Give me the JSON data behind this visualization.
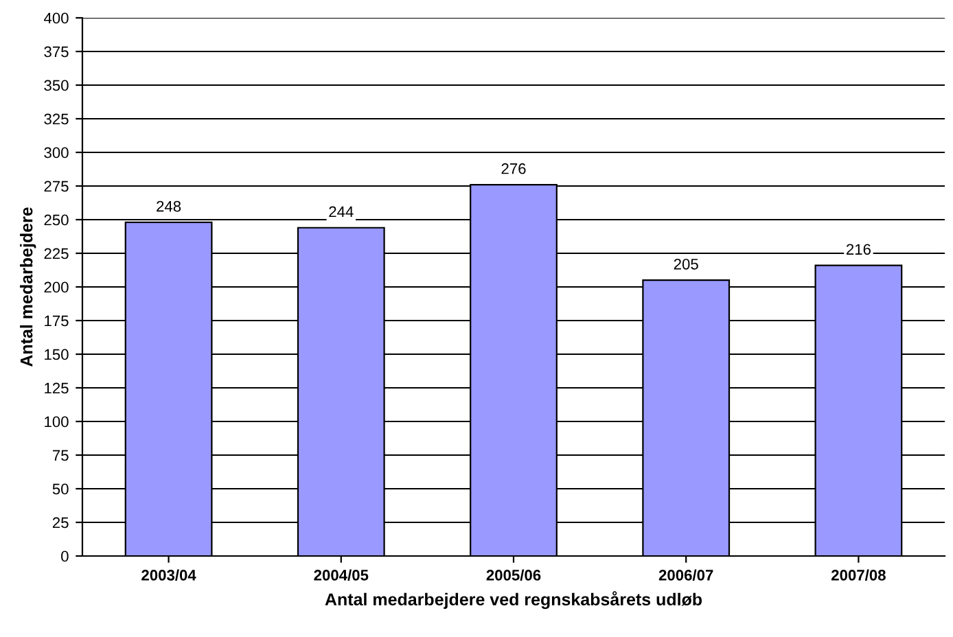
{
  "chart_data": {
    "type": "bar",
    "xlabel": "Antal medarbejdere ved regnskabsårets udløb",
    "ylabel": "Antal medarbejdere",
    "categories": [
      "2003/04",
      "2004/05",
      "2005/06",
      "2006/07",
      "2007/08"
    ],
    "values": [
      248,
      244,
      276,
      205,
      216
    ],
    "color": "#9999ff",
    "ylim": [
      0,
      400
    ],
    "yticks": [
      0,
      25,
      50,
      75,
      100,
      125,
      150,
      175,
      200,
      225,
      250,
      275,
      300,
      325,
      350,
      375,
      400
    ],
    "grid": "y",
    "data_labels": true
  }
}
